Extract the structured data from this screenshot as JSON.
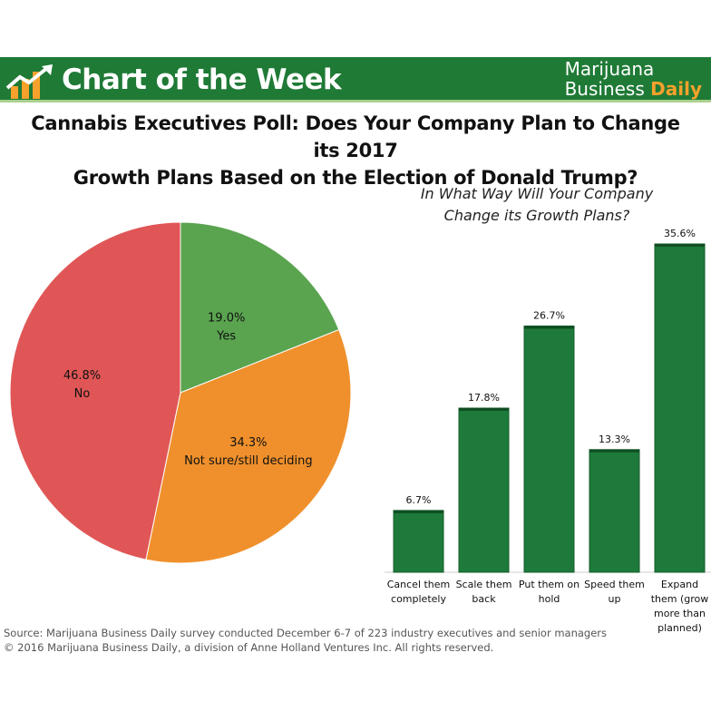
{
  "banner": {
    "title": "Chart of the Week",
    "brand_line1": "Marijuana",
    "brand_line2_a": "Business",
    "brand_line2_b": "Daily",
    "colors": {
      "background": "#1f7a36",
      "brand_accent": "#f6a12b",
      "stripe": "#a9d18e"
    }
  },
  "headline": {
    "line1": "Cannabis Executives Poll: Does Your Company Plan to Change its 2017",
    "line2": "Growth Plans Based on the Election of Donald Trump?"
  },
  "bar_subtitle": {
    "line1": "In What Way Will Your Company",
    "line2": "Change its Growth Plans?"
  },
  "chart_data": [
    {
      "type": "pie",
      "title": "",
      "slices": [
        {
          "label": "Yes",
          "value": 19.0,
          "display": "19.0%",
          "color": "#5aa450"
        },
        {
          "label": "Not sure/still deciding",
          "value": 34.3,
          "display": "34.3%",
          "color": "#f0902c"
        },
        {
          "label": "No",
          "value": 46.8,
          "display": "46.8%",
          "color": "#e05656"
        }
      ]
    },
    {
      "type": "bar",
      "title": "In What Way Will Your Company Change its Growth Plans?",
      "categories": [
        "Cancel them completely",
        "Scale them back",
        "Put them on hold",
        "Speed them up",
        "Expand them (grow more than planned)"
      ],
      "category_lines": [
        [
          "Cancel them",
          "completely"
        ],
        [
          "Scale them",
          "back"
        ],
        [
          "Put them on",
          "hold"
        ],
        [
          "Speed them",
          "up"
        ],
        [
          "Expand",
          "them (grow",
          "more than",
          "planned)"
        ]
      ],
      "values": [
        6.7,
        17.8,
        26.7,
        13.3,
        35.6
      ],
      "value_labels": [
        "6.7%",
        "17.8%",
        "26.7%",
        "13.3%",
        "35.6%"
      ],
      "ylim": [
        0,
        35.6
      ],
      "grid": false,
      "colors": {
        "bar": "#1e7a3a",
        "bar_edge": "#135c29"
      }
    }
  ],
  "footer": {
    "source": "Source: Marijuana Business Daily survey conducted December 6-7 of 223 industry executives and senior managers",
    "copyright": "© 2016 Marijuana Business Daily, a division of Anne Holland Ventures Inc. All rights reserved."
  }
}
